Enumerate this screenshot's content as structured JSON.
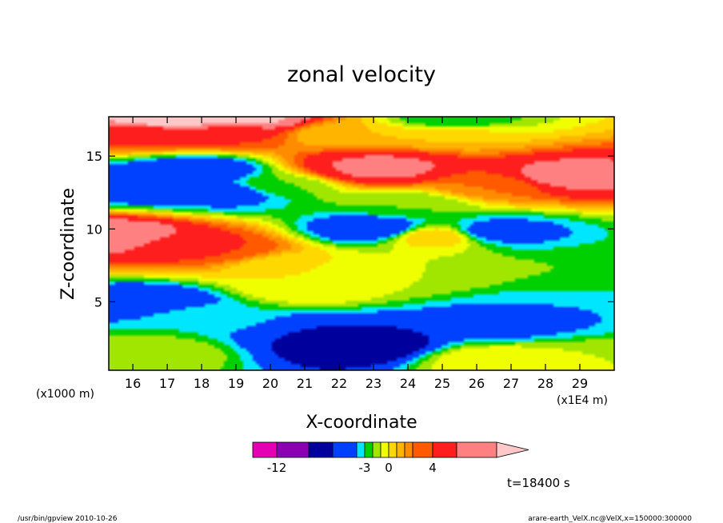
{
  "chart_data": {
    "type": "heatmap",
    "title": "zonal velocity",
    "xlabel": "X-coordinate",
    "ylabel": "Z-coordinate",
    "x_unit_label": "(x1E4 m)",
    "y_unit_label": "(x1000 m)",
    "x_ticks": [
      "16",
      "17",
      "18",
      "19",
      "20",
      "21",
      "22",
      "23",
      "24",
      "25",
      "26",
      "27",
      "28",
      "29"
    ],
    "y_ticks": [
      "5",
      "10",
      "15"
    ],
    "xlim": [
      15.3,
      30
    ],
    "ylim": [
      0.3,
      17.7
    ],
    "colorbar": {
      "tick_labels": [
        "-12",
        "-3",
        "0",
        "4"
      ],
      "levels": [
        -15,
        -12,
        -9,
        -6,
        -4,
        -3,
        -2,
        -1,
        0,
        1,
        2,
        3,
        4,
        6,
        9
      ],
      "colors": [
        "#e600b4",
        "#8c00b4",
        "#00009c",
        "#0040ff",
        "#00e6ff",
        "#00d000",
        "#a0e600",
        "#f0ff00",
        "#ffd800",
        "#ffb400",
        "#ff8c00",
        "#ff5a00",
        "#ff1e1e",
        "#ff8080",
        "#ffc8c8"
      ]
    },
    "fields": [
      {
        "x": 17.0,
        "z": 17.5,
        "u": 12
      },
      {
        "x": 19.2,
        "z": 17.5,
        "u": 10
      },
      {
        "x": 16.5,
        "z": 16.6,
        "u": 4
      },
      {
        "x": 19.0,
        "z": 16.6,
        "u": 4
      },
      {
        "x": 18.0,
        "z": 14.0,
        "u": -6
      },
      {
        "x": 16.2,
        "z": 13.0,
        "u": -6
      },
      {
        "x": 18.8,
        "z": 12.5,
        "u": -5
      },
      {
        "x": 20.3,
        "z": 13.0,
        "u": -2
      },
      {
        "x": 22.9,
        "z": 14.2,
        "u": 5
      },
      {
        "x": 23.0,
        "z": 14.2,
        "u": 8
      },
      {
        "x": 22.0,
        "z": 16.5,
        "u": 1
      },
      {
        "x": 25.0,
        "z": 16.5,
        "u": 1
      },
      {
        "x": 25.2,
        "z": 17.5,
        "u": -3
      },
      {
        "x": 28.5,
        "z": 13.6,
        "u": 7
      },
      {
        "x": 26.5,
        "z": 13.0,
        "u": 3
      },
      {
        "x": 15.6,
        "z": 9.5,
        "u": 8
      },
      {
        "x": 17.5,
        "z": 8.9,
        "u": 5
      },
      {
        "x": 18.6,
        "z": 8.6,
        "u": 4
      },
      {
        "x": 20.5,
        "z": 7.5,
        "u": 0
      },
      {
        "x": 23.0,
        "z": 10.0,
        "u": -6
      },
      {
        "x": 26.5,
        "z": 9.8,
        "u": -5
      },
      {
        "x": 24.8,
        "z": 9.5,
        "u": 1
      },
      {
        "x": 24.0,
        "z": 11.7,
        "u": -2
      },
      {
        "x": 21.0,
        "z": 6.0,
        "u": 0
      },
      {
        "x": 16.5,
        "z": 5.0,
        "u": -6
      },
      {
        "x": 18.0,
        "z": 4.0,
        "u": -3
      },
      {
        "x": 21.5,
        "z": 2.8,
        "u": -6
      },
      {
        "x": 22.6,
        "z": 2.0,
        "u": -8
      },
      {
        "x": 26.5,
        "z": 3.5,
        "u": -5
      },
      {
        "x": 28.5,
        "z": 4.5,
        "u": -4
      },
      {
        "x": 16.5,
        "z": 1.5,
        "u": -1
      },
      {
        "x": 26.5,
        "z": 1.0,
        "u": 0
      },
      {
        "x": 29.5,
        "z": 1.0,
        "u": -1
      },
      {
        "x": 29.0,
        "z": 7.0,
        "u": -2
      },
      {
        "x": 24.0,
        "z": 7.0,
        "u": -1
      }
    ]
  },
  "time_label": "t=18400 s",
  "footer": {
    "left": "/usr/bin/gpview   2010-10-26",
    "right": "arare-earth_VelX.nc@VelX,x=150000:300000"
  }
}
